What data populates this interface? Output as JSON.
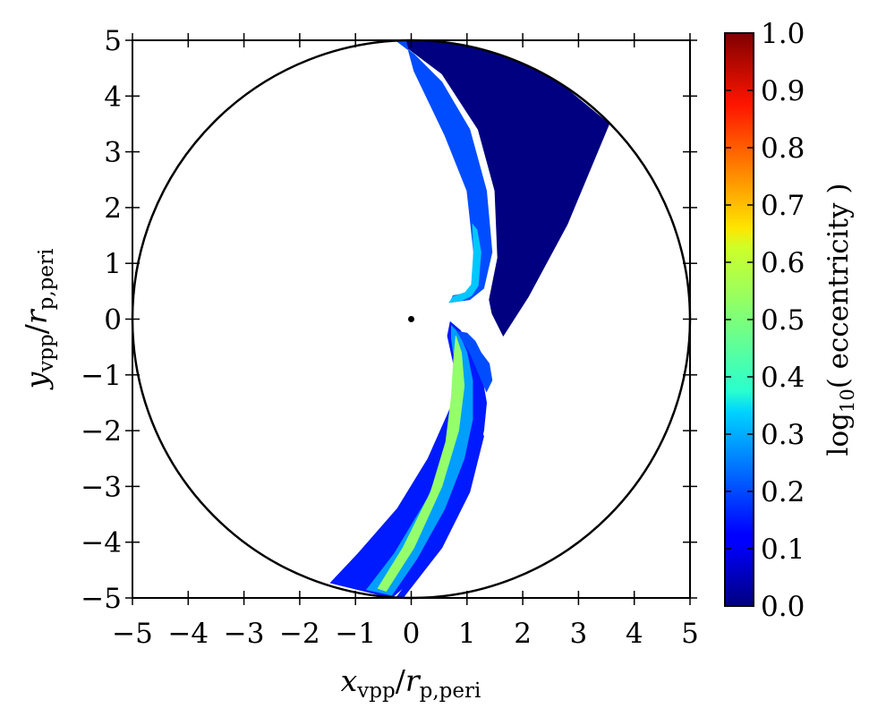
{
  "chart_data": {
    "type": "heatmap",
    "title": "",
    "xlabel": {
      "var": "x",
      "sub": "vpp",
      "den_var": "r",
      "den_sub": "p,peri"
    },
    "ylabel": {
      "var": "y",
      "sub": "vpp",
      "den_var": "r",
      "den_sub": "p,peri"
    },
    "xlim": [
      -5,
      5
    ],
    "ylim": [
      -5,
      5
    ],
    "xticks": [
      -5,
      -4,
      -3,
      -2,
      -1,
      0,
      1,
      2,
      3,
      4,
      5
    ],
    "yticks": [
      -5,
      -4,
      -3,
      -2,
      -1,
      0,
      1,
      2,
      3,
      4,
      5
    ],
    "xtick_labels": [
      "−5",
      "−4",
      "−3",
      "−2",
      "−1",
      "0",
      "1",
      "2",
      "3",
      "4",
      "5"
    ],
    "ytick_labels": [
      "−5",
      "−4",
      "−3",
      "−2",
      "−1",
      "0",
      "1",
      "2",
      "3",
      "4",
      "5"
    ],
    "boundary_circle": {
      "center": [
        0,
        0
      ],
      "radius": 5
    },
    "central_point": [
      0,
      0
    ],
    "colormap": "jet",
    "colorbar": {
      "label_prefix": "log",
      "label_sub": "10",
      "label_suffix": "( eccentricity )",
      "range": [
        0.0,
        1.0
      ],
      "ticks": [
        0.0,
        0.1,
        0.2,
        0.3,
        0.4,
        0.5,
        0.6,
        0.7,
        0.8,
        0.9,
        1.0
      ],
      "tick_labels": [
        "0.0",
        "0.1",
        "0.2",
        "0.3",
        "0.4",
        "0.5",
        "0.6",
        "0.7",
        "0.8",
        "0.9",
        "1.0"
      ]
    },
    "regions": [
      {
        "name": "upper wedge",
        "value": 0.0,
        "polygon": [
          [
            -0.25,
            5
          ],
          [
            0.55,
            4.4
          ],
          [
            1.2,
            3.4
          ],
          [
            1.5,
            2.3
          ],
          [
            1.55,
            1.1
          ],
          [
            1.4,
            0.35
          ],
          [
            1.45,
            0.1
          ],
          [
            1.65,
            -0.3
          ],
          [
            2.1,
            0.4
          ],
          [
            2.8,
            1.7
          ],
          [
            3.55,
            3.5
          ],
          [
            2.7,
            4.2
          ],
          [
            1.7,
            4.75
          ],
          [
            0.6,
            5
          ]
        ]
      },
      {
        "name": "upper arm outer band",
        "value": 0.2,
        "polygon": [
          [
            -0.28,
            5
          ],
          [
            0.05,
            4.75
          ],
          [
            0.55,
            4.25
          ],
          [
            1.05,
            3.4
          ],
          [
            1.35,
            2.3
          ],
          [
            1.45,
            1.2
          ],
          [
            1.3,
            0.55
          ],
          [
            1.05,
            0.35
          ],
          [
            0.7,
            0.3
          ],
          [
            0.75,
            0.42
          ],
          [
            0.97,
            0.46
          ],
          [
            1.1,
            0.62
          ],
          [
            1.12,
            1.2
          ],
          [
            1.0,
            2.3
          ],
          [
            0.6,
            3.3
          ],
          [
            0.05,
            4.45
          ],
          [
            -0.1,
            5
          ]
        ]
      },
      {
        "name": "upper arm inner band",
        "value": 0.32,
        "polygon": [
          [
            0.68,
            0.3
          ],
          [
            0.9,
            0.33
          ],
          [
            1.08,
            0.42
          ],
          [
            1.2,
            0.6
          ],
          [
            1.25,
            1.2
          ],
          [
            1.18,
            1.6
          ],
          [
            1.1,
            1.7
          ],
          [
            1.12,
            1.2
          ],
          [
            1.08,
            0.62
          ],
          [
            0.97,
            0.48
          ],
          [
            0.75,
            0.4
          ]
        ]
      },
      {
        "name": "lower arm outer band",
        "value": 0.15,
        "polygon": [
          [
            0.7,
            -0.05
          ],
          [
            0.88,
            -0.2
          ],
          [
            1.1,
            -0.55
          ],
          [
            1.28,
            -1.1
          ],
          [
            1.35,
            -1.5
          ],
          [
            1.3,
            -2.0
          ],
          [
            1.2,
            -2.4
          ],
          [
            1.0,
            -3.0
          ],
          [
            0.65,
            -3.8
          ],
          [
            0.1,
            -4.6
          ],
          [
            -0.35,
            -5.0
          ],
          [
            -1.45,
            -4.73
          ],
          [
            -0.95,
            -4.2
          ],
          [
            -0.25,
            -3.4
          ],
          [
            0.3,
            -2.5
          ],
          [
            0.7,
            -1.6
          ],
          [
            0.78,
            -0.9
          ],
          [
            0.65,
            -0.3
          ]
        ]
      },
      {
        "name": "lower arm middle band",
        "value": 0.28,
        "polygon": [
          [
            0.72,
            -0.12
          ],
          [
            0.85,
            -0.25
          ],
          [
            1.0,
            -0.6
          ],
          [
            1.1,
            -1.1
          ],
          [
            1.1,
            -1.8
          ],
          [
            0.95,
            -2.5
          ],
          [
            0.6,
            -3.4
          ],
          [
            0.1,
            -4.3
          ],
          [
            -0.35,
            -4.95
          ],
          [
            -0.8,
            -4.85
          ],
          [
            -0.3,
            -4.2
          ],
          [
            0.3,
            -3.2
          ],
          [
            0.62,
            -2.4
          ],
          [
            0.78,
            -1.6
          ],
          [
            0.8,
            -0.9
          ],
          [
            0.72,
            -0.35
          ]
        ]
      },
      {
        "name": "lower arm core",
        "value": 0.52,
        "polygon": [
          [
            0.8,
            -0.3
          ],
          [
            0.9,
            -0.6
          ],
          [
            0.95,
            -1.2
          ],
          [
            0.85,
            -2.0
          ],
          [
            0.55,
            -3.0
          ],
          [
            0.05,
            -4.1
          ],
          [
            -0.45,
            -4.88
          ],
          [
            -0.6,
            -4.83
          ],
          [
            -0.15,
            -4.1
          ],
          [
            0.35,
            -3.1
          ],
          [
            0.62,
            -2.2
          ],
          [
            0.72,
            -1.4
          ],
          [
            0.76,
            -0.75
          ]
        ]
      },
      {
        "name": "thin streak",
        "value": 0.15,
        "polygon": [
          [
            1.25,
            -2.0
          ],
          [
            1.3,
            -2.1
          ],
          [
            1.05,
            -3.1
          ],
          [
            0.55,
            -4.1
          ],
          [
            -0.15,
            -5.0
          ],
          [
            -0.25,
            -4.97
          ],
          [
            0.4,
            -4.1
          ],
          [
            0.9,
            -3.1
          ]
        ]
      },
      {
        "name": "upper blob",
        "value": 0.2,
        "polygon": [
          [
            0.82,
            -0.22
          ],
          [
            1.0,
            -0.25
          ],
          [
            1.15,
            -0.4
          ],
          [
            1.25,
            -0.6
          ],
          [
            1.4,
            -0.8
          ],
          [
            1.45,
            -1.1
          ],
          [
            1.35,
            -1.3
          ],
          [
            1.2,
            -0.95
          ],
          [
            1.05,
            -0.6
          ]
        ]
      }
    ]
  }
}
